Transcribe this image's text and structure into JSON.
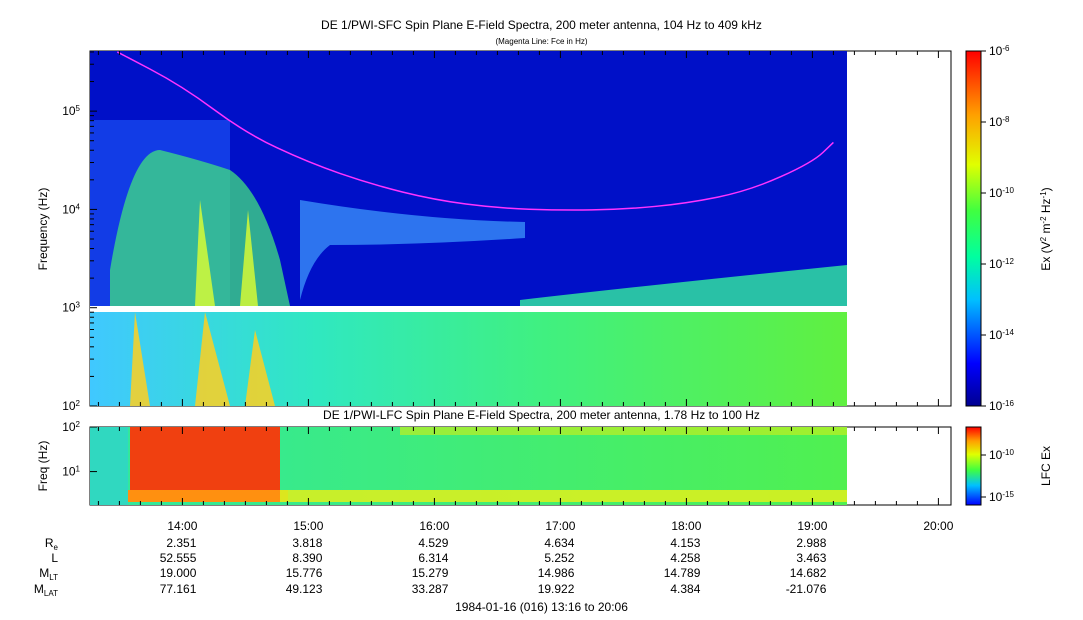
{
  "chart_data": [
    {
      "type": "heatmap",
      "title": "DE 1/PWI-SFC  Spin Plane E-Field Spectra, 200 meter antenna, 104 Hz to 409 kHz",
      "subtitle": "(Magenta Line: Fce in Hz)",
      "ylabel": "Frequency (Hz)",
      "yscale": "log",
      "ylim": [
        100,
        409000
      ],
      "yticks": [
        "10^2",
        "10^3",
        "10^4",
        "10^5"
      ],
      "colorbar_label": "Ex (V^2 m^-2 Hz^-1)",
      "colorbar_range": [
        "1e-16",
        "1e-6"
      ],
      "colorbar_ticks": [
        "10^-6",
        "10^-8",
        "10^-10",
        "10^-12",
        "10^-14",
        "10^-16"
      ],
      "fce_line": {
        "x": [
          "13:29",
          "14:00",
          "14:30",
          "15:00",
          "15:30",
          "16:00",
          "16:30",
          "17:00",
          "17:30",
          "18:00",
          "18:30",
          "19:00",
          "19:10"
        ],
        "y": [
          400000,
          180000,
          60000,
          30000,
          18000,
          12500,
          10300,
          9800,
          10000,
          11500,
          15500,
          30000,
          48000
        ]
      }
    },
    {
      "type": "heatmap",
      "title": "DE 1/PWI-LFC  Spin Plane E-Field Spectra, 200 meter antenna, 1.78 Hz to 100 Hz",
      "ylabel": "Freq (Hz)",
      "yscale": "log",
      "ylim": [
        1.78,
        100
      ],
      "yticks": [
        "10^1",
        "10^2"
      ],
      "colorbar_label": "LFC Ex",
      "colorbar_ticks": [
        "10^-10",
        "10^-15"
      ]
    }
  ],
  "x_axis": {
    "ticks": [
      "14:00",
      "15:00",
      "16:00",
      "17:00",
      "18:00",
      "19:00",
      "20:00"
    ],
    "range": [
      "13:16",
      "20:06"
    ]
  },
  "ephemeris": {
    "rows": [
      {
        "label": "R",
        "sub": "e",
        "values": [
          "2.351",
          "3.818",
          "4.529",
          "4.634",
          "4.153",
          "2.988"
        ]
      },
      {
        "label": "L",
        "sub": "",
        "values": [
          "52.555",
          "8.390",
          "6.314",
          "5.252",
          "4.258",
          "3.463"
        ]
      },
      {
        "label": "M",
        "sub": "LT",
        "values": [
          "19.000",
          "15.776",
          "15.279",
          "14.986",
          "14.789",
          "14.682"
        ]
      },
      {
        "label": "M",
        "sub": "LAT",
        "values": [
          "77.161",
          "49.123",
          "33.287",
          "19.922",
          "4.384",
          "-21.076"
        ]
      }
    ]
  },
  "footer": "1984-01-16 (016) 13:16 to 20:06",
  "colors": {
    "background_fill": "#0000c8",
    "fce_line": "#ff33ff",
    "no_data": "#ffffff"
  }
}
